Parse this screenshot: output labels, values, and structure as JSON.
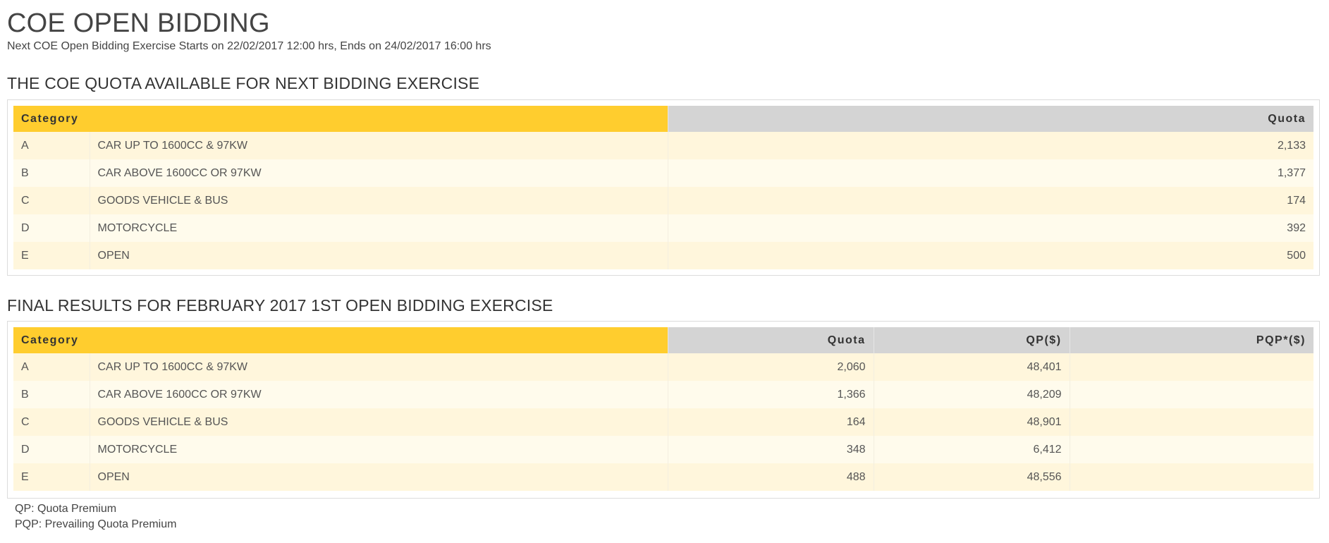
{
  "page": {
    "title": "COE OPEN BIDDING",
    "subtitle": "Next COE Open Bidding Exercise Starts on 22/02/2017 12:00 hrs, Ends on 24/02/2017 16:00 hrs"
  },
  "colors": {
    "category_header": "#ffcd2e",
    "value_header": "#d4d4d4",
    "row_odd": "#fff6dc",
    "row_even": "#fffbec"
  },
  "quota_table": {
    "heading": "THE COE QUOTA AVAILABLE FOR NEXT BIDDING EXERCISE",
    "headers": {
      "category": "Category",
      "quota": "Quota"
    },
    "rows": [
      {
        "code": "A",
        "description": "CAR UP TO 1600CC & 97KW",
        "quota": "2,133"
      },
      {
        "code": "B",
        "description": "CAR ABOVE 1600CC OR 97KW",
        "quota": "1,377"
      },
      {
        "code": "C",
        "description": "GOODS VEHICLE & BUS",
        "quota": "174"
      },
      {
        "code": "D",
        "description": "MOTORCYCLE",
        "quota": "392"
      },
      {
        "code": "E",
        "description": "OPEN",
        "quota": "500"
      }
    ]
  },
  "results_table": {
    "heading": "FINAL RESULTS FOR FEBRUARY 2017 1ST OPEN BIDDING EXERCISE",
    "headers": {
      "category": "Category",
      "quota": "Quota",
      "qp": "QP($)",
      "pqp": "PQP*($)"
    },
    "rows": [
      {
        "code": "A",
        "description": "CAR UP TO 1600CC & 97KW",
        "quota": "2,060",
        "qp": "48,401",
        "pqp": ""
      },
      {
        "code": "B",
        "description": "CAR ABOVE 1600CC OR 97KW",
        "quota": "1,366",
        "qp": "48,209",
        "pqp": ""
      },
      {
        "code": "C",
        "description": "GOODS VEHICLE & BUS",
        "quota": "164",
        "qp": "48,901",
        "pqp": ""
      },
      {
        "code": "D",
        "description": "MOTORCYCLE",
        "quota": "348",
        "qp": "6,412",
        "pqp": ""
      },
      {
        "code": "E",
        "description": "OPEN",
        "quota": "488",
        "qp": "48,556",
        "pqp": ""
      }
    ]
  },
  "legend": {
    "qp": "QP: Quota Premium",
    "pqp": "PQP: Prevailing Quota Premium"
  }
}
